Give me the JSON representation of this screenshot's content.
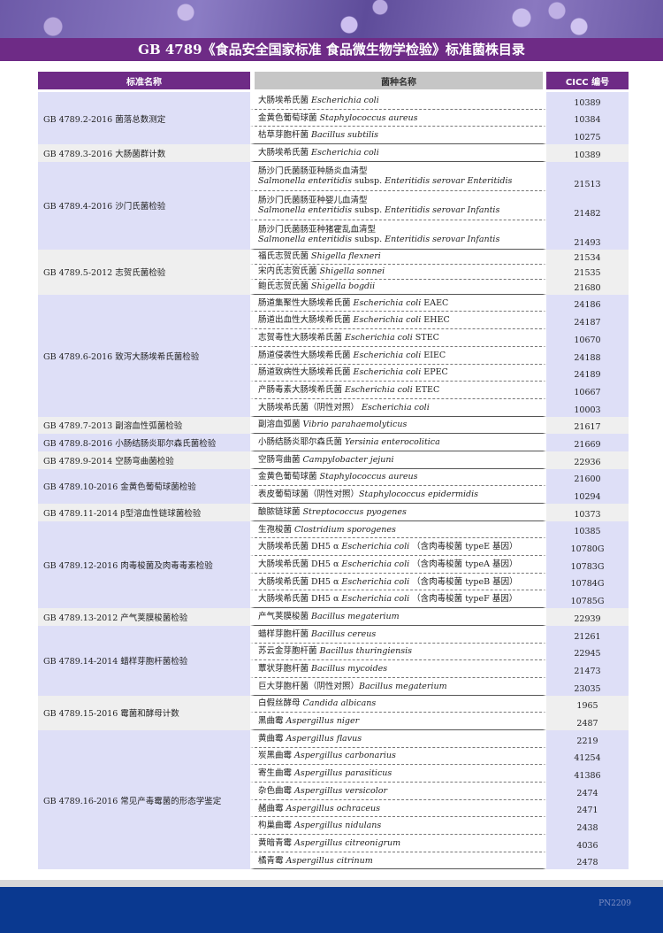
{
  "title": "GB 4789《食品安全国家标准 食品微生物学检验》标准菌株目录",
  "headers": {
    "standard": "标准名称",
    "species": "菌种名称",
    "cicc": "CICC 编号"
  },
  "footer_code": "PN2209",
  "colors": {
    "purple": "#6e2b86",
    "lavender": "#dedff7",
    "gray": "#efefef",
    "footer_blue": "#0a3990"
  },
  "groups": [
    {
      "standard": "GB 4789.2-2016  菌落总数测定",
      "rows": [
        {
          "cn": "大肠埃希氏菌 ",
          "la": "Escherichia coli",
          "cicc": "10389"
        },
        {
          "cn": "金黄色葡萄球菌 ",
          "la": "Staphylococcus aureus",
          "cicc": "10384"
        },
        {
          "cn": "枯草芽胞杆菌 ",
          "la": "Bacillus subtilis",
          "cicc": "10275"
        }
      ]
    },
    {
      "standard": "GB 4789.3-2016  大肠菌群计数",
      "rows": [
        {
          "cn": "大肠埃希氏菌 ",
          "la": "Escherichia coli",
          "cicc": "10389"
        }
      ]
    },
    {
      "standard": "GB 4789.4-2016  沙门氏菌检验",
      "rows": [
        {
          "cn": "肠沙门氏菌肠亚种肠炎血清型",
          "la": "Salmonella enteritidis",
          "extra": " subsp. ",
          "la2": "Enteritidis serovar Enteritidis",
          "cicc": "21513",
          "double": true
        },
        {
          "cn": "肠沙门氏菌肠亚种婴儿血清型",
          "la": "Salmonella enteritidis",
          "extra": " subsp. ",
          "la2": "Enteritidis serovar Infantis",
          "cicc": "21482",
          "double": true
        },
        {
          "cn": "肠沙门氏菌肠亚种猪霍乱血清型",
          "la": "Salmonella enteritidis",
          "extra": " subsp. ",
          "la2": "Enteritidis serovar Infantis",
          "cicc": "21493",
          "double": true
        }
      ]
    },
    {
      "standard": "GB 4789.5-2012  志贺氏菌检验",
      "rows": [
        {
          "cn": "福氏志贺氏菌 ",
          "la": "Shigella flexneri",
          "cicc": "21534"
        },
        {
          "cn": "宋内氏志贺氏菌 ",
          "la": "Shigella sonnei",
          "cicc": "21535"
        },
        {
          "cn": "鲍氏志贺氏菌 ",
          "la": "Shigella bogdii",
          "cicc": "21680"
        }
      ]
    },
    {
      "standard": "GB 4789.6-2016  致泻大肠埃希氏菌检验",
      "rows": [
        {
          "cn": "肠道集聚性大肠埃希氏菌  ",
          "la": "Escherichia coli",
          "extra": " EAEC",
          "cicc": "24186"
        },
        {
          "cn": "肠道出血性大肠埃希氏菌 ",
          "la": "Escherichia coli",
          "extra": " EHEC",
          "cicc": "24187"
        },
        {
          "cn": "志贺毒性大肠埃希氏菌  ",
          "la": "Escherichia coli",
          "extra": " STEC",
          "cicc": "10670"
        },
        {
          "cn": "肠道侵袭性大肠埃希氏菌  ",
          "la": "Escherichia coli",
          "extra": " EIEC",
          "cicc": "24188"
        },
        {
          "cn": "肠道致病性大肠埃希氏菌  ",
          "la": "Escherichia coli",
          "extra": " EPEC",
          "cicc": "24189"
        },
        {
          "cn": "产肠毒素大肠埃希氏菌  ",
          "la": "Escherichia coli",
          "extra": " ETEC",
          "cicc": "10667"
        },
        {
          "cn": "大肠埃希氏菌（阴性对照）  ",
          "la": "Escherichia coli",
          "cicc": "10003"
        }
      ]
    },
    {
      "standard": "GB 4789.7-2013  副溶血性弧菌检验",
      "rows": [
        {
          "cn": "副溶血弧菌  ",
          "la": "Vibrio parahaemolyticus",
          "cicc": "21617"
        }
      ]
    },
    {
      "standard": "GB 4789.8-2016  小肠结肠炎耶尔森氏菌检验",
      "rows": [
        {
          "cn": "小肠结肠炎耶尔森氏菌  ",
          "la": "Yersinia enterocolitica",
          "cicc": "21669"
        }
      ]
    },
    {
      "standard": "GB 4789.9-2014  空肠弯曲菌检验",
      "rows": [
        {
          "cn": "空肠弯曲菌 ",
          "la": "Campylobacter jejuni",
          "cicc": "22936"
        }
      ]
    },
    {
      "standard": "GB 4789.10-2016  金黄色葡萄球菌检验",
      "rows": [
        {
          "cn": "金黄色葡萄球菌 ",
          "la": "Staphylococcus aureus",
          "cicc": "21600"
        },
        {
          "cn": "表皮葡萄球菌（阴性对照）",
          "la": "Staphylococcus epidermidis",
          "cicc": "10294"
        }
      ]
    },
    {
      "standard": "GB 4789.11-2014  β型溶血性链球菌检验",
      "rows": [
        {
          "cn": "酿脓链球菌 ",
          "la": "Streptococcus pyogenes",
          "cicc": "10373"
        }
      ]
    },
    {
      "standard": "GB 4789.12-2016  肉毒梭菌及肉毒毒素检验",
      "rows": [
        {
          "cn": "生孢梭菌  ",
          "la": "Clostridium sporogenes",
          "cicc": "10385"
        },
        {
          "cn": "大肠埃希氏菌 DH5 α ",
          "la": "Escherichia coli",
          "extra": " （含肉毒梭菌 typeE 基因）",
          "cicc": "10780G"
        },
        {
          "cn": "大肠埃希氏菌 DH5 α ",
          "la": "Escherichia coli",
          "extra": " （含肉毒梭菌 typeA 基因）",
          "cicc": "10783G"
        },
        {
          "cn": "大肠埃希氏菌 DH5 α ",
          "la": "Escherichia coli",
          "extra": " （含肉毒梭菌 typeB 基因）",
          "cicc": "10784G"
        },
        {
          "cn": "大肠埃希氏菌 DH5 α ",
          "la": "Escherichia coli",
          "extra": " （含肉毒梭菌 typeF 基因）",
          "cicc": "10785G"
        }
      ]
    },
    {
      "standard": "GB 4789.13-2012  产气荚膜梭菌检验",
      "rows": [
        {
          "cn": "产气荚膜梭菌 ",
          "la": "Bacillus megaterium",
          "cicc": "22939"
        }
      ]
    },
    {
      "standard": "GB 4789.14-2014  蜡样芽胞杆菌检验",
      "rows": [
        {
          "cn": "蜡样芽胞杆菌 ",
          "la": "Bacillus cereus",
          "cicc": "21261"
        },
        {
          "cn": "苏云金芽胞杆菌 ",
          "la": "Bacillus thuringiensis",
          "cicc": "22945"
        },
        {
          "cn": "蕈状芽胞杆菌  ",
          "la": "Bacillus mycoides",
          "cicc": "21473"
        },
        {
          "cn": "巨大芽胞杆菌（阴性对照）",
          "la": "Bacillus megaterium",
          "cicc": "23035"
        }
      ]
    },
    {
      "standard": "GB 4789.15-2016  霉菌和酵母计数",
      "rows": [
        {
          "cn": "白假丝酵母  ",
          "la": "Candida albicans",
          "cicc": "1965"
        },
        {
          "cn": "黑曲霉  ",
          "la": "Aspergillus niger",
          "cicc": "2487"
        }
      ]
    },
    {
      "standard": "GB 4789.16-2016  常见产毒霉菌的形态学鉴定",
      "rows": [
        {
          "cn": "黄曲霉  ",
          "la": "Aspergillus flavus",
          "cicc": "2219"
        },
        {
          "cn": "炭黑曲霉  ",
          "la": "Aspergillus carbonarius",
          "cicc": "41254"
        },
        {
          "cn": "寄生曲霉  ",
          "la": "Aspergillus parasiticus",
          "cicc": "41386"
        },
        {
          "cn": "杂色曲霉  ",
          "la": "Aspergillus    versicolor",
          "cicc": "2474"
        },
        {
          "cn": "赭曲霉  ",
          "la": "Aspergillus ochraceus",
          "cicc": "2471"
        },
        {
          "cn": "构巢曲霉  ",
          "la": "Aspergillus nidulans",
          "cicc": "2438"
        },
        {
          "cn": "黄暗青霉  ",
          "la": "Aspergillus citreonigrum",
          "cicc": "4036"
        },
        {
          "cn": "橘青霉  ",
          "la": "Aspergillus    citrinum",
          "cicc": "2478"
        }
      ]
    }
  ]
}
